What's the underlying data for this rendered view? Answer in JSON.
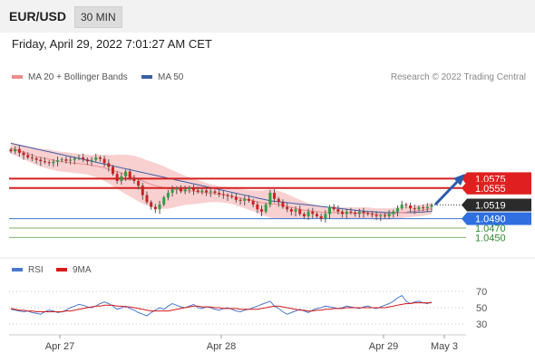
{
  "header": {
    "pair": "EUR/USD",
    "timeframe": "30 MIN"
  },
  "subtitle": "Friday, April 29, 2022 7:01:27 AM CET",
  "legend": {
    "items": [
      {
        "label": "MA 20 + Bollinger Bands",
        "color": "#f08c8c"
      },
      {
        "label": "MA 50",
        "color": "#3b5ea8"
      }
    ],
    "credit": "Research © 2022 Trading Central"
  },
  "rsi_legend": [
    {
      "label": "RSI",
      "color": "#4a78d0"
    },
    {
      "label": "9MA",
      "color": "#d61a1a"
    }
  ],
  "chart_data": [
    {
      "type": "candlestick",
      "x_ticks": [
        "Apr 27",
        "Apr 28",
        "Apr 29",
        "May 3"
      ],
      "current_price": "1.0519",
      "resistance_levels": [
        "1.0575",
        "1.0555"
      ],
      "support_levels": [
        "1.0490",
        "1.0470",
        "1.0450"
      ],
      "bollinger_band_color": "#f8c8c8",
      "close_series": [
        1.0633,
        1.0638,
        1.063,
        1.0625,
        1.062,
        1.0618,
        1.0615,
        1.0612,
        1.061,
        1.0608,
        1.0611,
        1.0614,
        1.0616,
        1.0613,
        1.0615,
        1.0618,
        1.062,
        1.0616,
        1.0612,
        1.0615,
        1.062,
        1.0617,
        1.0608,
        1.06,
        1.0585,
        1.057,
        1.058,
        1.059,
        1.0575,
        1.057,
        1.056,
        1.054,
        1.0525,
        1.0515,
        1.051,
        1.052,
        1.0535,
        1.0545,
        1.0552,
        1.0555,
        1.0548,
        1.0552,
        1.0556,
        1.055,
        1.0547,
        1.055,
        1.0546,
        1.0548,
        1.0545,
        1.0542,
        1.054,
        1.0538,
        1.0536,
        1.053,
        1.0528,
        1.0532,
        1.0528,
        1.052,
        1.051,
        1.0505,
        1.052,
        1.0545,
        1.0532,
        1.0525,
        1.0515,
        1.051,
        1.0505,
        1.051,
        1.05,
        1.0495,
        1.0505,
        1.05,
        1.0495,
        1.049,
        1.05,
        1.0515,
        1.051,
        1.0505,
        1.05,
        1.0505,
        1.0503,
        1.05,
        1.0505,
        1.0502,
        1.05,
        1.0498,
        1.0495,
        1.0497,
        1.0495,
        1.05,
        1.0505,
        1.0512,
        1.052,
        1.0518,
        1.0512,
        1.051,
        1.0514,
        1.0512,
        1.0515,
        1.0519
      ],
      "ma20": [
        1.064,
        1.0637,
        1.0634,
        1.0631,
        1.0628,
        1.0625,
        1.0622,
        1.062,
        1.0618,
        1.0616,
        1.0614,
        1.0612,
        1.0611,
        1.061,
        1.0609,
        1.0608,
        1.0607,
        1.0606,
        1.0605,
        1.0603,
        1.0602,
        1.06,
        1.0598,
        1.0595,
        1.0592,
        1.059,
        1.0587,
        1.0584,
        1.0581,
        1.0578,
        1.0574,
        1.057,
        1.0566,
        1.0563,
        1.056,
        1.0558,
        1.0556,
        1.0554,
        1.0553,
        1.0552,
        1.0551,
        1.055,
        1.0549,
        1.0548,
        1.0547,
        1.0546,
        1.0545,
        1.0544,
        1.0543,
        1.0542,
        1.0541,
        1.054,
        1.0538,
        1.0536,
        1.0534,
        1.0532,
        1.053,
        1.0528,
        1.0526,
        1.0524,
        1.0523,
        1.0522,
        1.0521,
        1.052,
        1.0518,
        1.0516,
        1.0514,
        1.0512,
        1.051,
        1.0508,
        1.0507,
        1.0506,
        1.0505,
        1.0504,
        1.0503,
        1.0503,
        1.0503,
        1.0503,
        1.0502,
        1.0502,
        1.0502,
        1.0502,
        1.0502,
        1.0502,
        1.0502,
        1.0501,
        1.05,
        1.05,
        1.05,
        1.05,
        1.0501,
        1.0502,
        1.0503,
        1.0504,
        1.0505,
        1.0506,
        1.0507,
        1.0508,
        1.051,
        1.0511
      ],
      "ma50": [
        1.065,
        1.0648,
        1.0646,
        1.0644,
        1.0642,
        1.064,
        1.0638,
        1.0636,
        1.0634,
        1.0632,
        1.063,
        1.0628,
        1.0626,
        1.0624,
        1.0622,
        1.062,
        1.0618,
        1.0616,
        1.0614,
        1.0612,
        1.061,
        1.0608,
        1.0606,
        1.0604,
        1.0602,
        1.06,
        1.0598,
        1.0596,
        1.0594,
        1.0592,
        1.059,
        1.0588,
        1.0586,
        1.0584,
        1.0582,
        1.058,
        1.0578,
        1.0576,
        1.0574,
        1.0572,
        1.057,
        1.0568,
        1.0566,
        1.0564,
        1.0562,
        1.056,
        1.0558,
        1.0556,
        1.0554,
        1.0552,
        1.055,
        1.0548,
        1.0546,
        1.0544,
        1.0542,
        1.054,
        1.0538,
        1.0536,
        1.0534,
        1.0532,
        1.053,
        1.0528,
        1.0527,
        1.0526,
        1.0525,
        1.0524,
        1.0523,
        1.0522,
        1.0521,
        1.052,
        1.0519,
        1.0518,
        1.0517,
        1.0516,
        1.0515,
        1.0514,
        1.0513,
        1.0512,
        1.0511,
        1.051,
        1.0509,
        1.0508,
        1.0507,
        1.0506,
        1.0505,
        1.0505,
        1.0504,
        1.0504,
        1.0503,
        1.0503,
        1.0503,
        1.0503,
        1.0503,
        1.0503,
        1.0503,
        1.0503,
        1.0504,
        1.0504,
        1.0505,
        1.0505
      ],
      "bb_width": [
        0.0012,
        0.0013,
        0.0014,
        0.0015,
        0.0016,
        0.0017,
        0.0018,
        0.0019,
        0.002,
        0.0021,
        0.0021,
        0.0021,
        0.0021,
        0.0021,
        0.0021,
        0.0021,
        0.0021,
        0.0021,
        0.0021,
        0.0022,
        0.0024,
        0.0026,
        0.0028,
        0.003,
        0.0033,
        0.0036,
        0.0039,
        0.0042,
        0.0044,
        0.0046,
        0.0047,
        0.0048,
        0.0048,
        0.0048,
        0.0048,
        0.0047,
        0.0045,
        0.0043,
        0.004,
        0.0037,
        0.0034,
        0.0031,
        0.0029,
        0.0027,
        0.0025,
        0.0023,
        0.0021,
        0.0019,
        0.0018,
        0.0017,
        0.0017,
        0.0017,
        0.0017,
        0.0018,
        0.0019,
        0.002,
        0.0021,
        0.0022,
        0.0024,
        0.0026,
        0.0028,
        0.003,
        0.003,
        0.0029,
        0.0028,
        0.0026,
        0.0024,
        0.0022,
        0.002,
        0.0018,
        0.0016,
        0.0015,
        0.0014,
        0.0013,
        0.0012,
        0.0012,
        0.0012,
        0.0012,
        0.0012,
        0.0012,
        0.0012,
        0.0012,
        0.0012,
        0.0012,
        0.0012,
        0.0012,
        0.0012,
        0.0012,
        0.0012,
        0.0012,
        0.0012,
        0.0012,
        0.0012,
        0.0012,
        0.0012,
        0.0012,
        0.0012,
        0.0012,
        0.0012,
        0.0012
      ]
    },
    {
      "type": "line",
      "title": "RSI",
      "y_ticks": [
        "70",
        "50",
        "30"
      ],
      "ylim": [
        20,
        80
      ],
      "series": [
        {
          "name": "RSI",
          "values": [
            48,
            47,
            46,
            45,
            46,
            44,
            43,
            42,
            45,
            47,
            46,
            44,
            45,
            47,
            50,
            52,
            54,
            53,
            51,
            50,
            52,
            55,
            57,
            55,
            52,
            48,
            50,
            52,
            49,
            47,
            44,
            42,
            40,
            44,
            47,
            50,
            48,
            52,
            55,
            53,
            51,
            50,
            52,
            54,
            50,
            49,
            51,
            50,
            48,
            47,
            49,
            50,
            48,
            46,
            45,
            47,
            48,
            50,
            52,
            54,
            56,
            58,
            52,
            49,
            45,
            42,
            44,
            46,
            48,
            46,
            44,
            47,
            49,
            50,
            52,
            51,
            50,
            49,
            50,
            52,
            51,
            50,
            49,
            51,
            52,
            50,
            49,
            51,
            53,
            55,
            58,
            62,
            65,
            58,
            55,
            57,
            58,
            56,
            55,
            57
          ]
        },
        {
          "name": "9MA",
          "values": [
            49,
            48,
            47,
            47,
            46,
            46,
            45,
            45,
            45,
            45,
            45,
            45,
            45,
            46,
            46,
            47,
            48,
            49,
            50,
            51,
            52,
            52,
            53,
            53,
            53,
            52,
            52,
            51,
            51,
            50,
            49,
            48,
            47,
            46,
            46,
            46,
            46,
            46,
            47,
            48,
            49,
            50,
            51,
            52,
            52,
            51,
            51,
            51,
            50,
            50,
            49,
            49,
            49,
            49,
            48,
            48,
            48,
            48,
            48,
            49,
            50,
            51,
            52,
            52,
            51,
            50,
            49,
            48,
            47,
            47,
            46,
            46,
            47,
            47,
            48,
            48,
            49,
            49,
            49,
            50,
            50,
            50,
            50,
            50,
            50,
            50,
            50,
            50,
            50,
            51,
            52,
            53,
            54,
            55,
            55,
            56,
            56,
            56,
            56,
            56
          ]
        }
      ]
    }
  ]
}
